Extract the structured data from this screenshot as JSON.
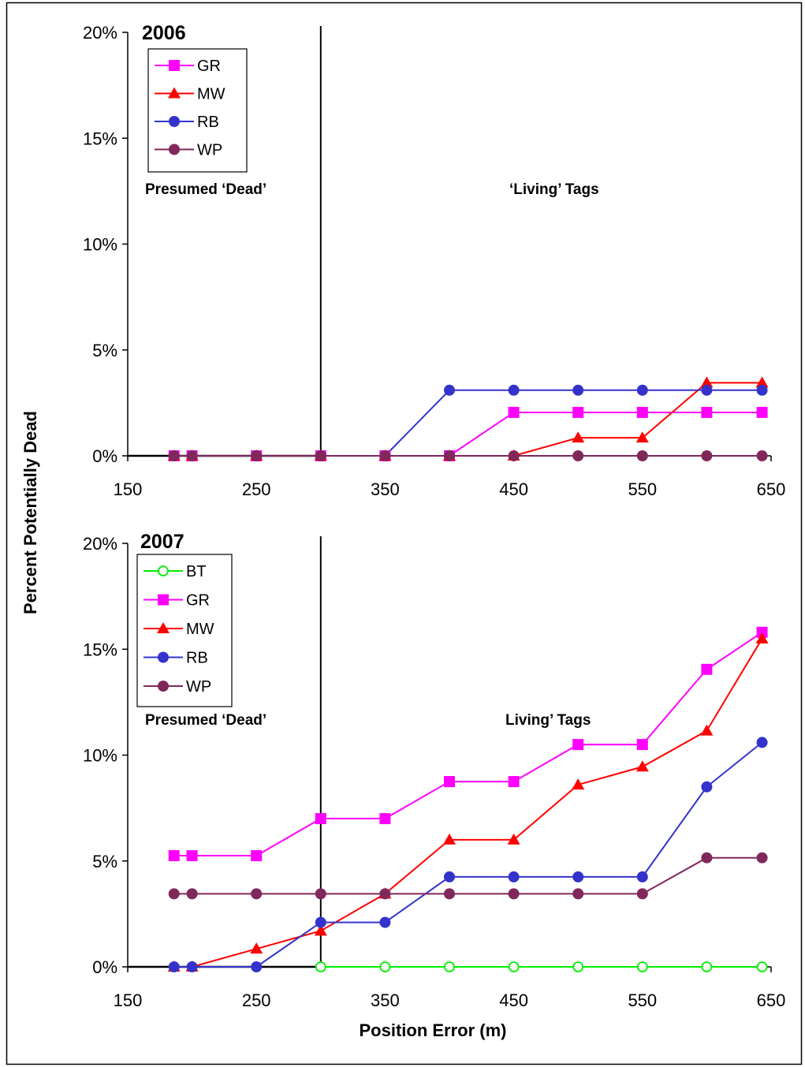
{
  "figure": {
    "ylabel": "Percent Potentially Dead",
    "xlabel": "Position Error (m)"
  },
  "chart_data": [
    {
      "type": "line",
      "title": "2006",
      "xlim": [
        150,
        650
      ],
      "ylim": [
        0,
        20
      ],
      "xticks": [
        "150",
        "250",
        "350",
        "450",
        "550",
        "650"
      ],
      "yticks": [
        "0%",
        "5%",
        "10%",
        "15%",
        "20%"
      ],
      "threshold_x": 300,
      "annotations": [
        "Presumed ‘Dead’",
        "‘Living’ Tags"
      ],
      "legend_position": "top-left",
      "x": [
        186,
        200,
        250,
        300,
        350,
        400,
        450,
        500,
        550,
        600,
        643
      ],
      "series": [
        {
          "name": "GR",
          "color": "#ff00ff",
          "marker": "square",
          "values": [
            0,
            0,
            0,
            0,
            0,
            0,
            2.05,
            2.05,
            2.05,
            2.05,
            2.05
          ]
        },
        {
          "name": "MW",
          "color": "#ff0000",
          "marker": "triangle",
          "values": [
            0,
            0,
            0,
            0,
            0,
            0,
            0,
            0.85,
            0.85,
            3.45,
            3.45
          ]
        },
        {
          "name": "RB",
          "color": "#3333cc",
          "marker": "circle",
          "values": [
            0,
            0,
            0,
            0,
            0,
            3.1,
            3.1,
            3.1,
            3.1,
            3.1,
            3.1
          ]
        },
        {
          "name": "WP",
          "color": "#80285c",
          "marker": "circle",
          "values": [
            0,
            0,
            0,
            0,
            0,
            0,
            0,
            0,
            0,
            0,
            0
          ]
        }
      ]
    },
    {
      "type": "line",
      "title": "2007",
      "xlim": [
        150,
        650
      ],
      "ylim": [
        0,
        20
      ],
      "xticks": [
        "150",
        "250",
        "350",
        "450",
        "550",
        "650"
      ],
      "yticks": [
        "0%",
        "5%",
        "10%",
        "15%",
        "20%"
      ],
      "threshold_x": 300,
      "annotations": [
        "Presumed ‘Dead’",
        "Living’ Tags"
      ],
      "legend_position": "top-left",
      "x": [
        186,
        200,
        250,
        300,
        350,
        400,
        450,
        500,
        550,
        600,
        643
      ],
      "series": [
        {
          "name": "BT",
          "color": "#00ee00",
          "marker": "circle-open",
          "values": [
            null,
            null,
            null,
            0,
            0,
            0,
            0,
            0,
            0,
            0,
            0
          ]
        },
        {
          "name": "GR",
          "color": "#ff00ff",
          "marker": "square",
          "values": [
            5.25,
            5.25,
            5.25,
            7.0,
            7.0,
            8.75,
            8.75,
            10.5,
            10.5,
            14.05,
            15.8
          ]
        },
        {
          "name": "MW",
          "color": "#ff0000",
          "marker": "triangle",
          "values": [
            0,
            0,
            0.85,
            1.7,
            3.45,
            6.0,
            6.0,
            8.6,
            9.45,
            11.15,
            15.5
          ]
        },
        {
          "name": "RB",
          "color": "#3333cc",
          "marker": "circle",
          "values": [
            0,
            0,
            0,
            2.1,
            2.1,
            4.25,
            4.25,
            4.25,
            4.25,
            8.5,
            10.6
          ]
        },
        {
          "name": "WP",
          "color": "#80285c",
          "marker": "circle",
          "values": [
            3.45,
            3.45,
            3.45,
            3.45,
            3.45,
            3.45,
            3.45,
            3.45,
            3.45,
            5.15,
            5.15
          ]
        }
      ]
    }
  ]
}
